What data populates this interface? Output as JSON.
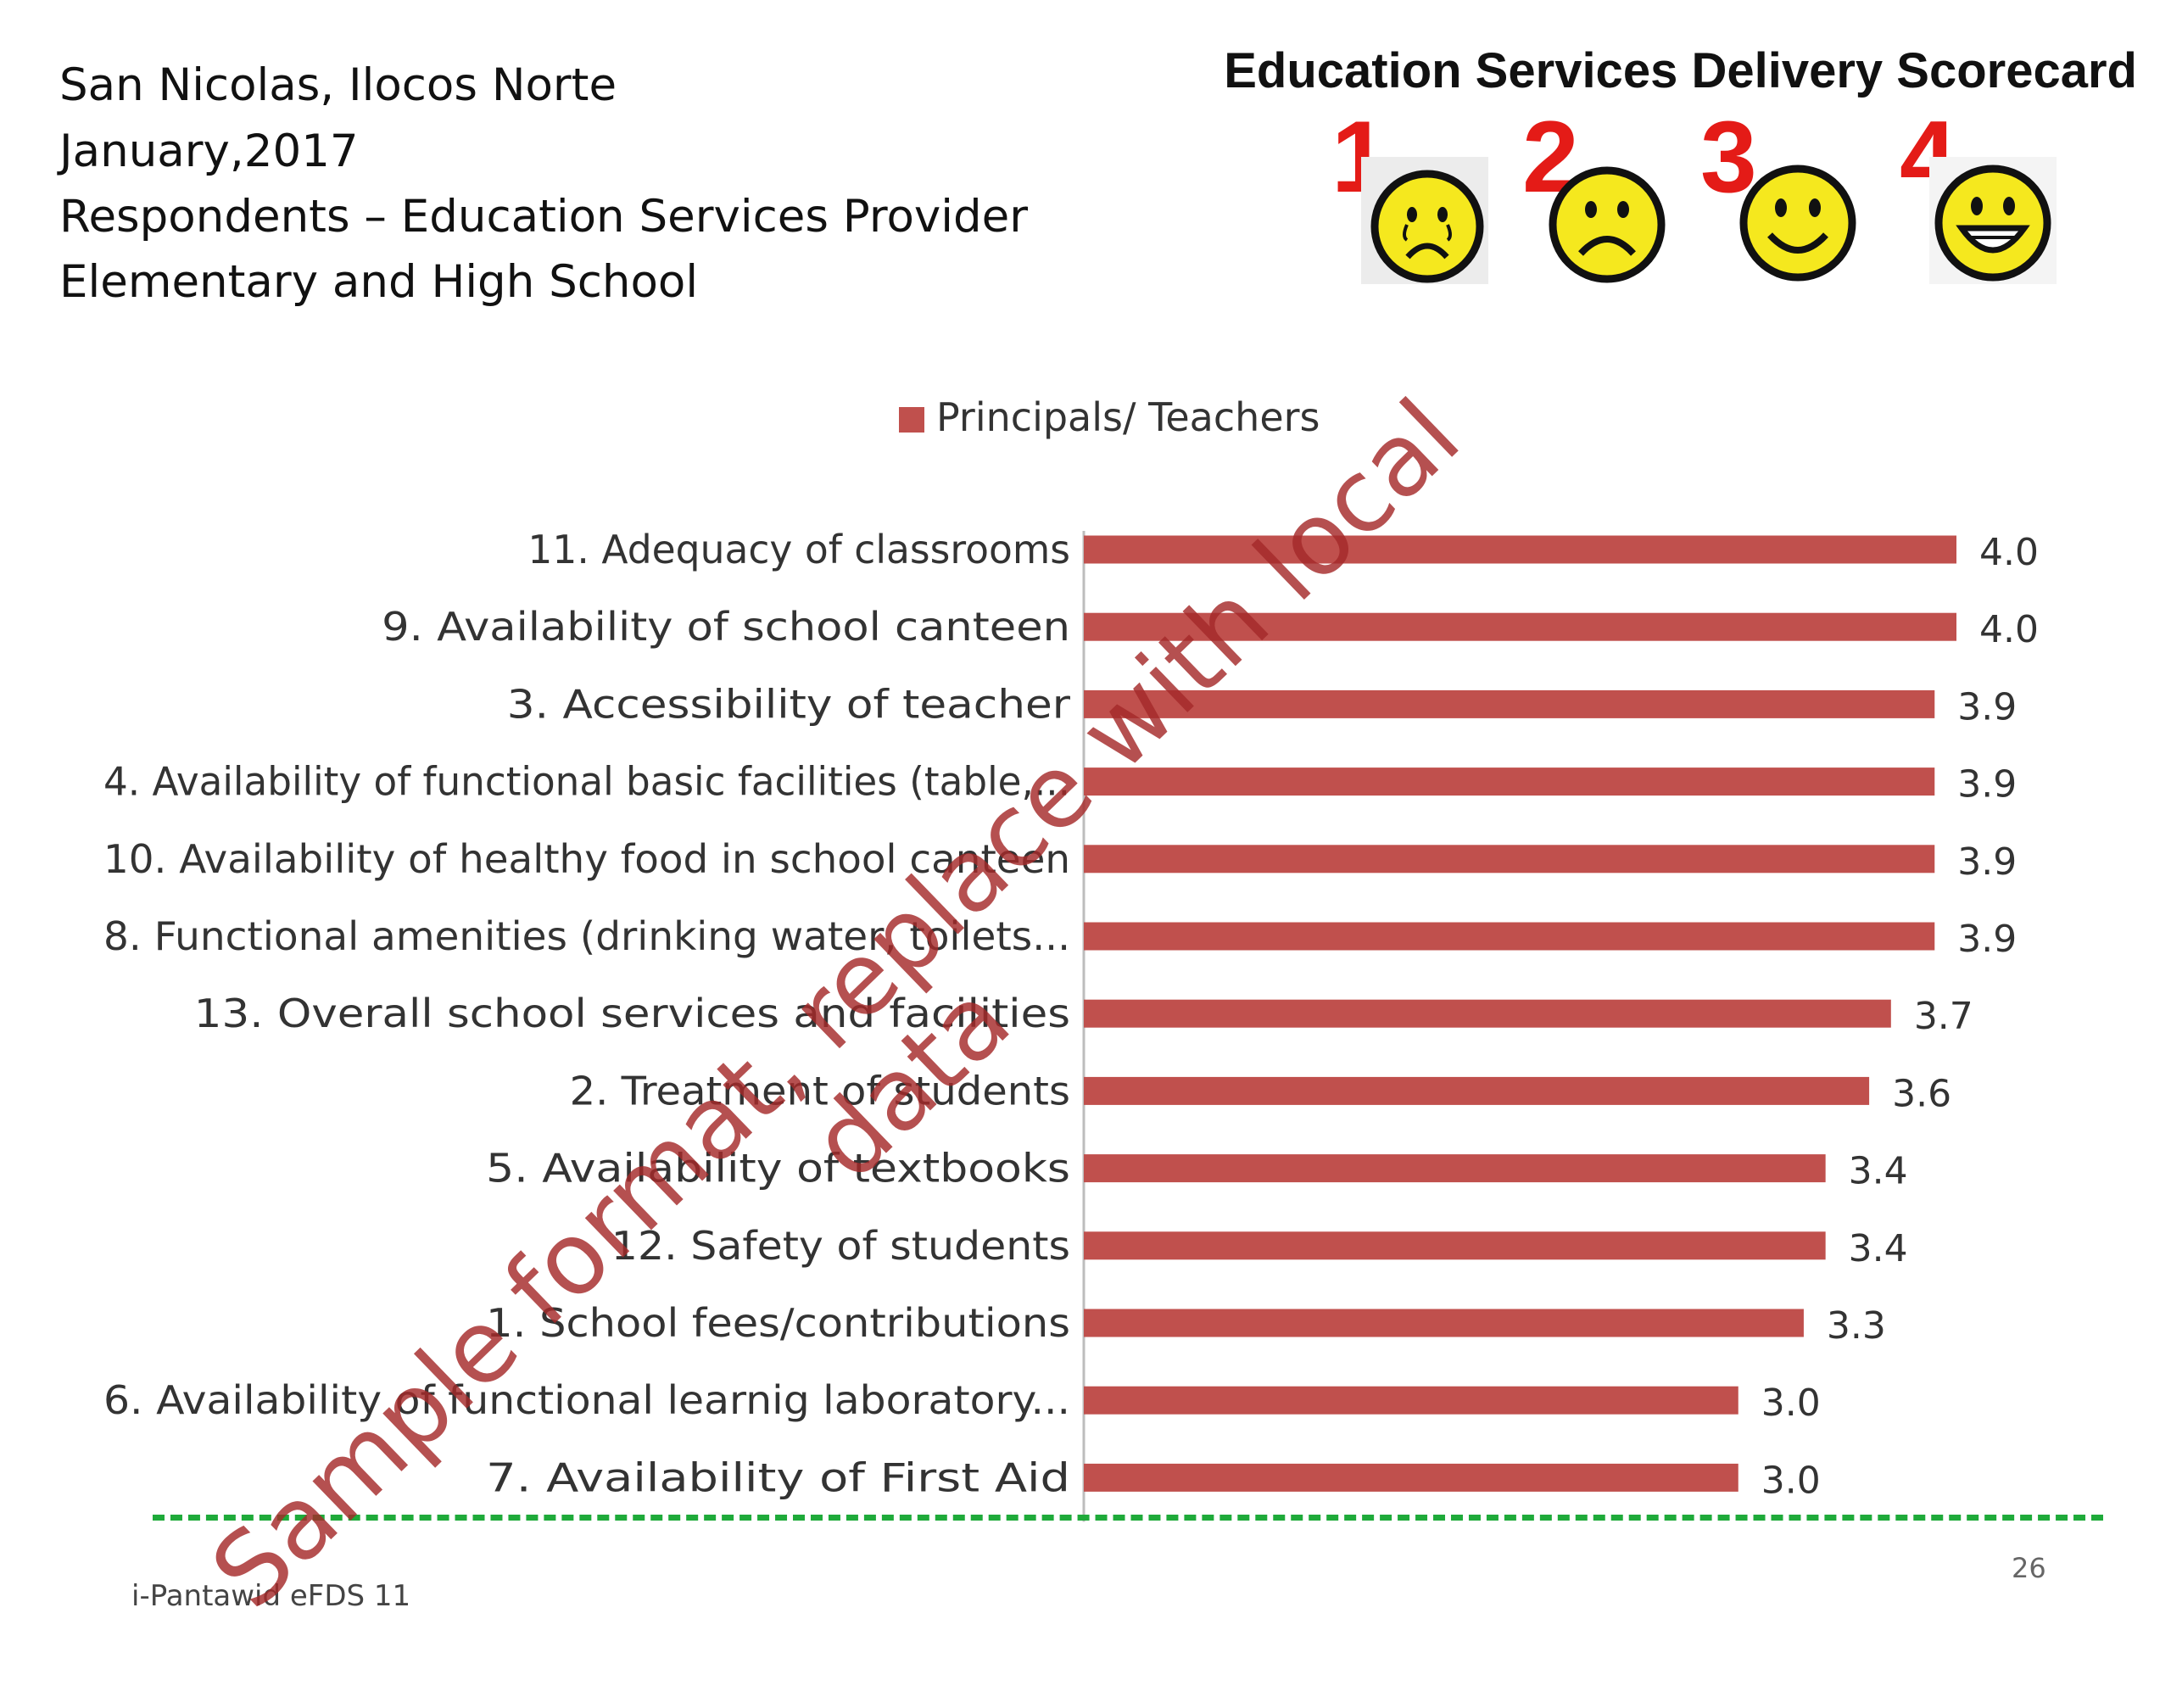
{
  "header": {
    "lines": [
      "San Nicolas, Ilocos Norte",
      "January,2017",
      "Respondents – Education Services Provider",
      "Elementary and High School"
    ],
    "scorecard_title": "Education Services Delivery Scorecard",
    "scale": [
      {
        "num": "1",
        "icon": "crying-face-icon"
      },
      {
        "num": "2",
        "icon": "sad-face-icon"
      },
      {
        "num": "3",
        "icon": "smiling-face-icon"
      },
      {
        "num": "4",
        "icon": "grinning-face-icon"
      }
    ]
  },
  "chart_data": {
    "type": "bar",
    "orientation": "horizontal",
    "legend": "top-center",
    "categories": [
      "11. Adequacy of classrooms",
      "9. Availability of school canteen",
      "3. Accessibility of teacher",
      "4. Availability of functional basic facilities (table,...",
      "10. Availability of healthy food in school canteen",
      "8. Functional amenities (drinking water, toilets...",
      "13. Overall school services and facilities",
      "2. Treatment of students",
      "5. Availability of textbooks",
      "12. Safety of students",
      "1. School fees/contributions",
      "6. Availability of functional learnig laboratory...",
      "7. Availability of First Aid"
    ],
    "series": [
      {
        "name": "Principals/ Teachers",
        "color": "#c0504d",
        "values": [
          4.0,
          4.0,
          3.9,
          3.9,
          3.9,
          3.9,
          3.7,
          3.6,
          3.4,
          3.4,
          3.3,
          3.0,
          3.0
        ],
        "labels": [
          "4.0",
          "4.0",
          "3.9",
          "3.9",
          "3.9",
          "3.9",
          "3.7",
          "3.6",
          "3.4",
          "3.4",
          "3.3",
          "3.0",
          "3.0"
        ]
      }
    ],
    "xlim": [
      0,
      4
    ],
    "grid": false
  },
  "watermark": {
    "line1": "Sample format, replace with local",
    "line2": "data"
  },
  "footer": {
    "text": "i-Pantawid eFDS 11",
    "page": "26"
  },
  "colors": {
    "bar": "#c0504d",
    "divider": "#1faa3a",
    "scale_numbers": "#e41b17",
    "watermark": "#a52a2a"
  }
}
